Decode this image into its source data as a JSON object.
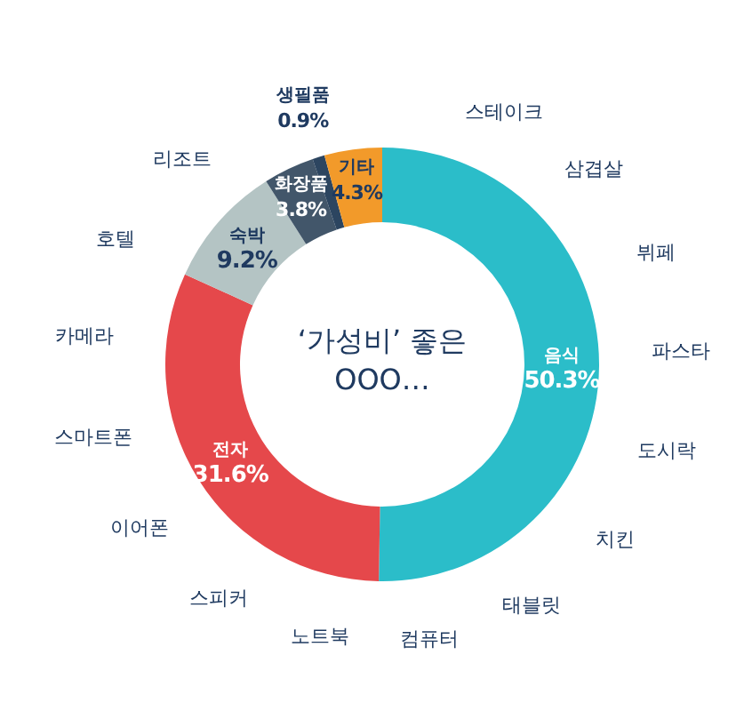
{
  "chart_data": {
    "type": "donut",
    "title": "‘가성비’ 좋은 OOO…",
    "categories": [
      "음식",
      "전자",
      "숙박",
      "화장품",
      "생필품",
      "기타"
    ],
    "values": [
      50.3,
      31.6,
      9.2,
      3.8,
      0.9,
      4.3
    ],
    "value_labels": [
      "50.3%",
      "31.6%",
      "9.2%",
      "3.8%",
      "0.9%",
      "4.3%"
    ],
    "colors": [
      "#2bbdc9",
      "#e5484b",
      "#b4c4c4",
      "#42566a",
      "#2c4560",
      "#f29a2a"
    ],
    "annotations": [
      "스테이크",
      "삼겹살",
      "뷔페",
      "파스타",
      "도시락",
      "치킨",
      "태블릿",
      "컴퓨터",
      "노트북",
      "스피커",
      "이어폰",
      "스마트폰",
      "카메라",
      "호텔",
      "리조트"
    ],
    "legend": false
  }
}
